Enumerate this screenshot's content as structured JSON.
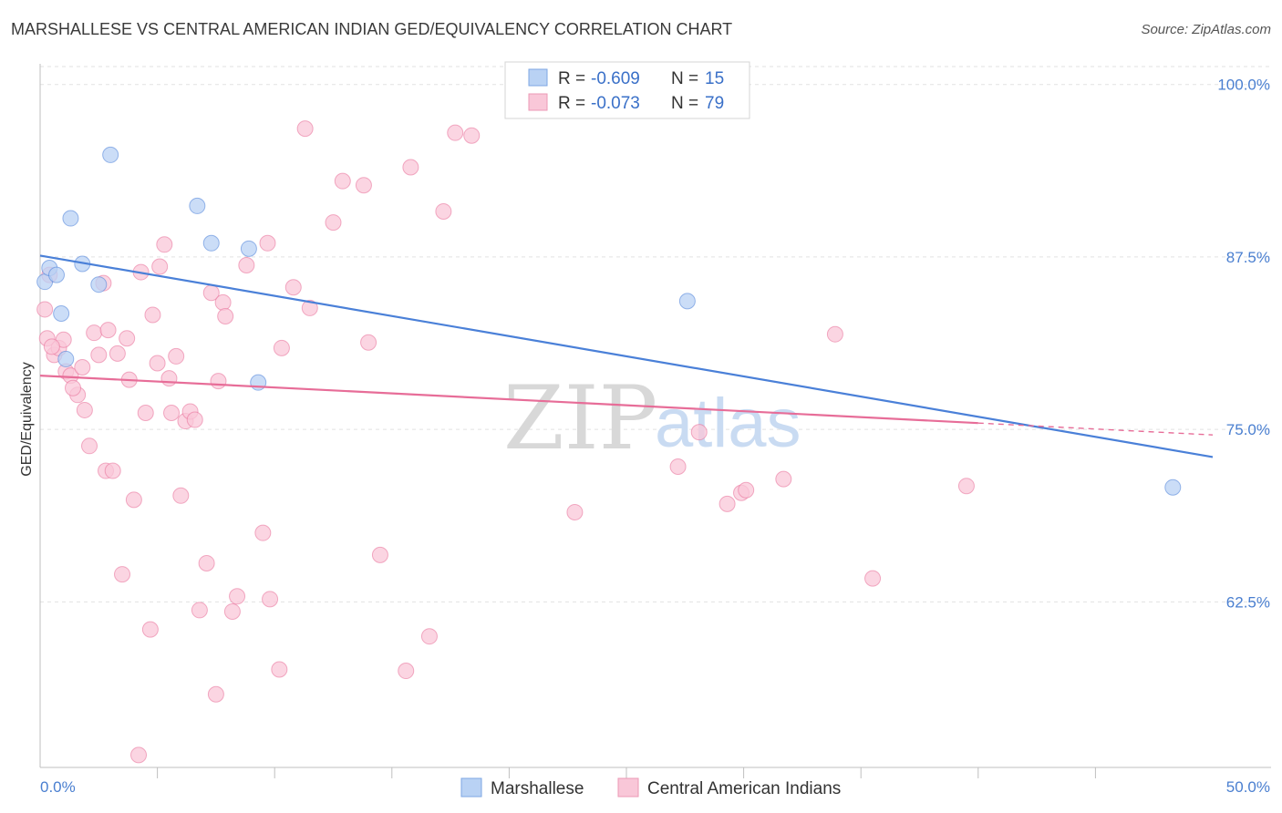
{
  "header": {
    "title": "MARSHALLESE VS CENTRAL AMERICAN INDIAN GED/EQUIVALENCY CORRELATION CHART",
    "source": "Source: ZipAtlas.com"
  },
  "watermark": {
    "part1": "ZIP",
    "part2": "atlas"
  },
  "legend_box": {
    "rows": [
      {
        "r_label": "R =",
        "r_value": "-0.609",
        "n_label": "N =",
        "n_value": "15",
        "color": "#a9c8f0"
      },
      {
        "r_label": "R =",
        "r_value": "-0.073",
        "n_label": "N =",
        "n_value": "79",
        "color": "#f8bfd2"
      }
    ]
  },
  "bottom_legend": {
    "items": [
      {
        "label": "Marshallese",
        "color": "#a9c8f0"
      },
      {
        "label": "Central American Indians",
        "color": "#f8bfd2"
      }
    ]
  },
  "chart_data": {
    "type": "scatter",
    "title": "MARSHALLESE VS CENTRAL AMERICAN INDIAN GED/EQUIVALENCY CORRELATION CHART",
    "xlabel": "",
    "ylabel": "GED/Equivalency",
    "xlim": [
      0,
      50
    ],
    "ylim": [
      50.5,
      101.5
    ],
    "x_tick_labels": [
      "0.0%",
      "50.0%"
    ],
    "y_ticks": [
      62.5,
      75.0,
      87.5,
      100.0
    ],
    "y_tick_labels": [
      "62.5%",
      "75.0%",
      "87.5%",
      "100.0%"
    ],
    "grid": true,
    "series": [
      {
        "name": "Marshallese",
        "color": "#4a80d8",
        "fill": "#b9d2f4",
        "points": [
          [
            0.2,
            85.7
          ],
          [
            0.4,
            86.7
          ],
          [
            0.7,
            86.2
          ],
          [
            0.9,
            83.4
          ],
          [
            1.1,
            80.1
          ],
          [
            1.3,
            90.3
          ],
          [
            1.8,
            87.0
          ],
          [
            2.5,
            85.5
          ],
          [
            3.0,
            94.9
          ],
          [
            6.7,
            91.2
          ],
          [
            7.3,
            88.5
          ],
          [
            8.9,
            88.1
          ],
          [
            9.3,
            78.4
          ],
          [
            27.6,
            84.3
          ],
          [
            48.3,
            70.8
          ]
        ],
        "trend": {
          "x0": 0.0,
          "y0": 87.6,
          "x1": 50.0,
          "y1": 73.0,
          "dash_from": null
        }
      },
      {
        "name": "Central American Indians",
        "color": "#e76d98",
        "fill": "#f9c7d8",
        "points": [
          [
            0.2,
            83.7
          ],
          [
            0.3,
            81.6
          ],
          [
            0.4,
            86.2
          ],
          [
            0.6,
            80.4
          ],
          [
            0.8,
            80.9
          ],
          [
            1.0,
            81.5
          ],
          [
            1.1,
            79.2
          ],
          [
            1.3,
            78.9
          ],
          [
            1.6,
            77.5
          ],
          [
            1.8,
            79.5
          ],
          [
            1.9,
            76.4
          ],
          [
            2.1,
            73.8
          ],
          [
            2.3,
            82.0
          ],
          [
            2.5,
            80.4
          ],
          [
            2.7,
            85.6
          ],
          [
            2.8,
            72.0
          ],
          [
            2.9,
            82.2
          ],
          [
            3.1,
            72.0
          ],
          [
            3.3,
            80.5
          ],
          [
            3.5,
            64.5
          ],
          [
            3.7,
            81.6
          ],
          [
            3.8,
            78.6
          ],
          [
            4.0,
            69.9
          ],
          [
            4.2,
            51.4
          ],
          [
            4.3,
            86.4
          ],
          [
            4.5,
            76.2
          ],
          [
            4.7,
            60.5
          ],
          [
            4.8,
            83.3
          ],
          [
            5.0,
            79.8
          ],
          [
            5.1,
            86.8
          ],
          [
            5.3,
            88.4
          ],
          [
            5.5,
            78.7
          ],
          [
            5.6,
            76.2
          ],
          [
            5.8,
            80.3
          ],
          [
            6.0,
            70.2
          ],
          [
            6.2,
            75.6
          ],
          [
            6.4,
            76.3
          ],
          [
            6.6,
            75.7
          ],
          [
            6.8,
            61.9
          ],
          [
            7.1,
            65.3
          ],
          [
            7.3,
            84.9
          ],
          [
            7.5,
            55.8
          ],
          [
            7.6,
            78.5
          ],
          [
            7.8,
            84.2
          ],
          [
            7.9,
            83.2
          ],
          [
            8.2,
            61.8
          ],
          [
            8.4,
            62.9
          ],
          [
            8.8,
            86.9
          ],
          [
            9.5,
            67.5
          ],
          [
            9.7,
            88.5
          ],
          [
            9.8,
            62.7
          ],
          [
            10.2,
            57.6
          ],
          [
            10.3,
            80.9
          ],
          [
            10.8,
            85.3
          ],
          [
            11.3,
            96.8
          ],
          [
            11.5,
            83.8
          ],
          [
            12.5,
            90.0
          ],
          [
            12.9,
            93.0
          ],
          [
            13.8,
            92.7
          ],
          [
            14.0,
            81.3
          ],
          [
            14.5,
            65.9
          ],
          [
            15.6,
            57.5
          ],
          [
            15.8,
            94.0
          ],
          [
            16.6,
            60.0
          ],
          [
            17.2,
            90.8
          ],
          [
            17.7,
            96.5
          ],
          [
            18.4,
            96.3
          ],
          [
            22.8,
            69.0
          ],
          [
            27.2,
            72.3
          ],
          [
            28.1,
            74.8
          ],
          [
            29.3,
            69.6
          ],
          [
            29.9,
            70.4
          ],
          [
            30.1,
            70.6
          ],
          [
            31.7,
            71.4
          ],
          [
            33.9,
            81.9
          ],
          [
            35.5,
            64.2
          ],
          [
            39.5,
            70.9
          ],
          [
            0.5,
            81.0
          ],
          [
            1.4,
            78.0
          ]
        ],
        "trend": {
          "x0": 0.0,
          "y0": 78.9,
          "x1": 50.0,
          "y1": 74.6,
          "dash_from": 40.0
        }
      }
    ]
  }
}
